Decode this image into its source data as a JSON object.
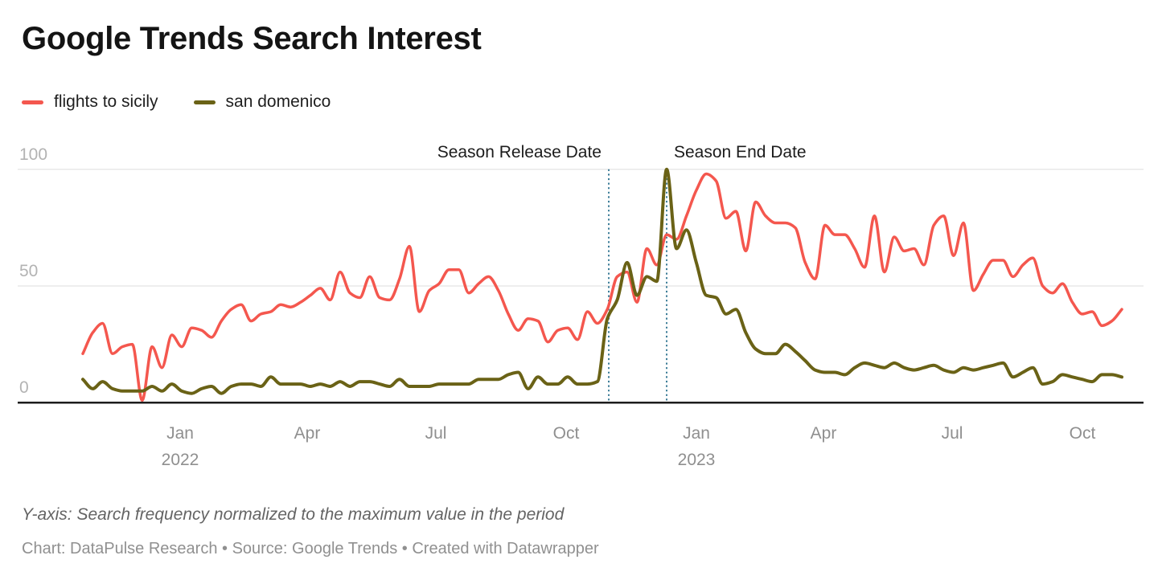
{
  "header": {
    "title": "Google Trends Search Interest"
  },
  "legend": {
    "items": [
      {
        "label": "flights to sicily",
        "color": "#f4574e"
      },
      {
        "label": "san domenico",
        "color": "#6a6216"
      }
    ]
  },
  "chart_data": {
    "type": "line",
    "title": "Google Trends Search Interest",
    "interval": "weekly",
    "x_range_note": "weekly points, late Oct 2021 through late Oct 2023",
    "ylim": [
      0,
      100
    ],
    "grid": "horizontal",
    "legend_position": "top-left",
    "y_ticks": [
      {
        "label": "0",
        "value": 0
      },
      {
        "label": "50",
        "value": 50
      },
      {
        "label": "100",
        "value": 100
      }
    ],
    "x_ticks": [
      {
        "label": "Jan",
        "year_label": "2022",
        "week_index": 9.86
      },
      {
        "label": "Apr",
        "year_label": "",
        "week_index": 22.71
      },
      {
        "label": "Jul",
        "year_label": "",
        "week_index": 35.71
      },
      {
        "label": "Oct",
        "year_label": "",
        "week_index": 48.86
      },
      {
        "label": "Jan",
        "year_label": "2023",
        "week_index": 62.0
      },
      {
        "label": "Apr",
        "year_label": "",
        "week_index": 74.86
      },
      {
        "label": "Jul",
        "year_label": "",
        "week_index": 87.86
      },
      {
        "label": "Oct",
        "year_label": "",
        "week_index": 101.0
      }
    ],
    "series": [
      {
        "name": "flights to sicily",
        "color": "#f4574e",
        "values": [
          21,
          30,
          34,
          21,
          24,
          25,
          1,
          24,
          15,
          29,
          24,
          32,
          31,
          28,
          35,
          40,
          42,
          35,
          38,
          39,
          42,
          41,
          43,
          46,
          49,
          44,
          56,
          47,
          45,
          54,
          45,
          44,
          53,
          67,
          39,
          48,
          51,
          57,
          57,
          47,
          51,
          54,
          48,
          38,
          31,
          36,
          35,
          26,
          31,
          32,
          27,
          39,
          34,
          40,
          54,
          56,
          43,
          66,
          59,
          72,
          70,
          80,
          91,
          98,
          95,
          79,
          82,
          65,
          86,
          80,
          77,
          77,
          75,
          60,
          53,
          76,
          72,
          72,
          66,
          58,
          80,
          56,
          71,
          65,
          66,
          59,
          76,
          80,
          63,
          77,
          48,
          55,
          61,
          61,
          54,
          59,
          62,
          50,
          47,
          51,
          43,
          38,
          39,
          33,
          35,
          40
        ]
      },
      {
        "name": "san domenico",
        "color": "#6a6216",
        "values": [
          10,
          6,
          9,
          6,
          5,
          5,
          5,
          7,
          5,
          8,
          5,
          4,
          6,
          7,
          4,
          7,
          8,
          8,
          7,
          11,
          8,
          8,
          8,
          7,
          8,
          7,
          9,
          7,
          9,
          9,
          8,
          7,
          10,
          7,
          7,
          7,
          8,
          8,
          8,
          8,
          10,
          10,
          10,
          12,
          13,
          6,
          11,
          8,
          8,
          11,
          8,
          8,
          9,
          36,
          44,
          60,
          46,
          54,
          52,
          100,
          66,
          74,
          60,
          46,
          45,
          38,
          40,
          30,
          23,
          21,
          21,
          25,
          22,
          18,
          14,
          13,
          13,
          12,
          15,
          17,
          16,
          15,
          17,
          15,
          14,
          15,
          16,
          14,
          13,
          15,
          14,
          15,
          16,
          17,
          11,
          13,
          15,
          8,
          9,
          12,
          11,
          10,
          9,
          12,
          12,
          11
        ]
      }
    ],
    "annotations": [
      {
        "label": "Season Release Date",
        "week_index": 53.15,
        "align": "right"
      },
      {
        "label": "Season End Date",
        "week_index": 59.0,
        "align": "left"
      }
    ],
    "annotation_line_color": "#3d7d98"
  },
  "footer": {
    "note": "Y-axis: Search frequency normalized to the maximum value in the period",
    "byline": "Chart: DataPulse Research • Source: Google Trends • Created with Datawrapper"
  }
}
